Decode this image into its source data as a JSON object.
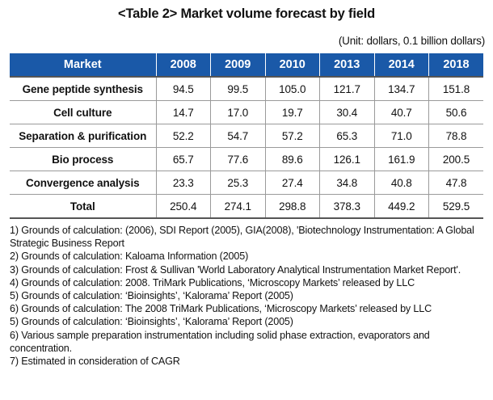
{
  "title": "<Table 2> Market volume forecast by field",
  "unit": "(Unit: dollars, 0.1 billion dollars)",
  "table": {
    "headers": [
      "Market",
      "2008",
      "2009",
      "2010",
      "2013",
      "2014",
      "2018"
    ],
    "rows": [
      [
        "Gene peptide synthesis",
        "94.5",
        "99.5",
        "105.0",
        "121.7",
        "134.7",
        "151.8"
      ],
      [
        "Cell culture",
        "14.7",
        "17.0",
        "19.7",
        "30.4",
        "40.7",
        "50.6"
      ],
      [
        "Separation & purification",
        "52.2",
        "54.7",
        "57.2",
        "65.3",
        "71.0",
        "78.8"
      ],
      [
        "Bio process",
        "65.7",
        "77.6",
        "89.6",
        "126.1",
        "161.9",
        "200.5"
      ],
      [
        "Convergence analysis",
        "23.3",
        "25.3",
        "27.4",
        "34.8",
        "40.8",
        "47.8"
      ],
      [
        "Total",
        "250.4",
        "274.1",
        "298.8",
        "378.3",
        "449.2",
        "529.5"
      ]
    ]
  },
  "notes": [
    "1) Grounds of calculation: (2006), SDI Report (2005), GIA(2008), 'Biotechnology Instrumentation: A Global Strategic Business Report",
    "2) Grounds of calculation: Kaloama Information (2005)",
    "3) Grounds of calculation: Frost & Sullivan 'World Laboratory Analytical Instrumentation Market Report'.",
    "4) Grounds of calculation: 2008. TriMark Publications, ‘Microscopy Markets’ released by LLC",
    "5) Grounds of calculation: ‘Bioinsights’, ‘Kalorama’ Report (2005)",
    "6) Grounds of calculation: The 2008 TriMark Publications, ‘Microscopy Markets’ released by LLC",
    "5) Grounds of calculation: ‘Bioinsights’, ‘Kalorama’ Report (2005)",
    "6) Various sample preparation instrumentation including solid phase extraction, evaporators and concentration.",
    "7) Estimated in consideration of CAGR"
  ]
}
